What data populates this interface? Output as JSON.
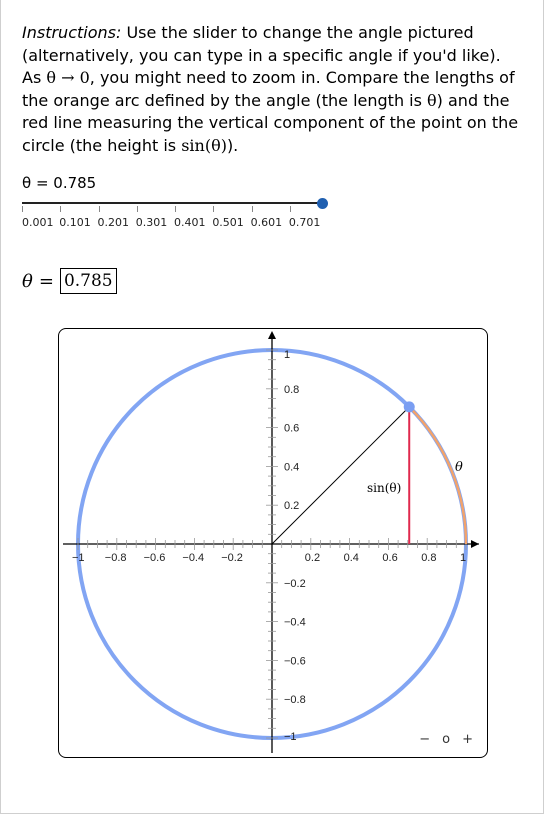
{
  "instructions": {
    "lead": "Instructions:",
    "part1": " Use the slider to change the angle pictured (alternatively, you can type in a specific angle if you'd like). As ",
    "math1": "θ → 0",
    "part2": ", you might need to zoom in. Compare the lengths of the orange arc defined by the angle (the length is ",
    "math2": "θ",
    "part3": ") and the red line measuring the vertical component of the point on the circle (the height is ",
    "math3": "sin(θ)",
    "part4": ")."
  },
  "slider": {
    "readout": "θ = 0.785",
    "value": 0.785,
    "min": 0.001,
    "max": 0.785,
    "tick_labels": [
      "0.001",
      "0.101",
      "0.201",
      "0.301",
      "0.401",
      "0.501",
      "0.601",
      "0.701"
    ]
  },
  "angle_input": {
    "symbol": "θ",
    "equals": "=",
    "value": "0.785"
  },
  "graph": {
    "theta": 0.785,
    "circle_color": "#82a5f3",
    "arc_color": "#f2a36b",
    "sine_color": "#e0294d",
    "point_color": "#7a9ef2",
    "arc_label": "θ",
    "sine_label": "sin(θ)",
    "x_ticks": [
      "−1",
      "−0.8",
      "−0.6",
      "−0.4",
      "−0.2",
      "0.2",
      "0.4",
      "0.6",
      "0.8",
      "1"
    ],
    "y_ticks": [
      "1",
      "0.8",
      "0.6",
      "0.4",
      "0.2",
      "−0.2",
      "−0.4",
      "−0.6",
      "−0.8",
      "−1"
    ],
    "zoom": {
      "out": "−",
      "reset": "o",
      "in": "+"
    }
  }
}
